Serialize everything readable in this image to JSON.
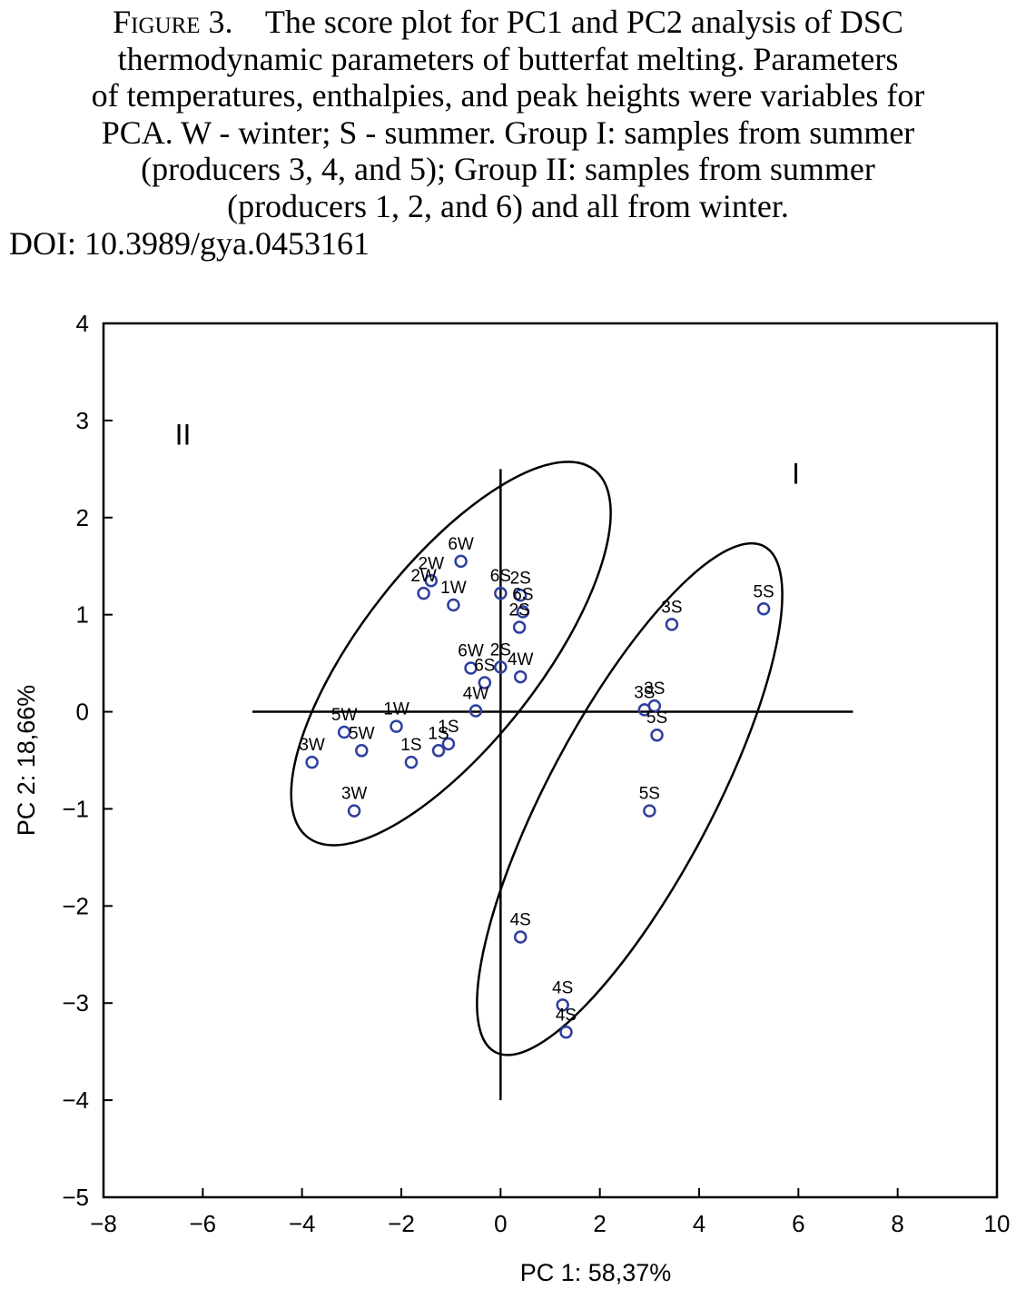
{
  "caption": {
    "label": "Figure 3.",
    "lines": [
      "The score plot for PC1 and PC2 analysis of DSC",
      "thermodynamic parameters of butterfat melting. Parameters",
      "of temperatures, enthalpies, and peak heights were variables for",
      "PCA. W - winter; S - summer. Group I: samples from summer",
      "(producers 3, 4, and 5); Group II: samples from summer",
      "(producers 1, 2, and 6) and all from winter."
    ],
    "doi": "DOI: 10.3989/gya.0453161"
  },
  "chart_data": {
    "type": "scatter",
    "xlabel": "PC 1: 58,37%",
    "ylabel": "PC 2: 18,66%",
    "xlim": [
      -8,
      10
    ],
    "ylim": [
      -5,
      4
    ],
    "xticks": [
      -8,
      -6,
      -4,
      -2,
      0,
      2,
      4,
      6,
      8,
      10
    ],
    "yticks": [
      -5,
      -4,
      -3,
      -2,
      -1,
      0,
      1,
      2,
      3,
      4
    ],
    "xtick_labels": [
      "−8",
      "−6",
      "−4",
      "−2",
      "0",
      "2",
      "4",
      "6",
      "8",
      "10"
    ],
    "ytick_labels": [
      "−5",
      "−4",
      "−3",
      "−2",
      "−1",
      "0",
      "1",
      "2",
      "3",
      "4"
    ],
    "grid": false,
    "marker_color": "#2e3f9e",
    "reference_lines": {
      "horizontal": {
        "y": 0,
        "x_from": -5,
        "x_to": 7.1
      },
      "vertical": {
        "x": 0,
        "y_from": -4,
        "y_to": 2.5
      }
    },
    "group_labels": [
      {
        "text": "II",
        "x": -6.4,
        "y": 2.75
      },
      {
        "text": "I",
        "x": 5.95,
        "y": 2.35
      }
    ],
    "ellipses": [
      {
        "group": "II",
        "cx": -1.0,
        "cy": 0.6,
        "rx": 1.8,
        "ry": 2.4,
        "rotate_deg": 38
      },
      {
        "group": "I",
        "cx": 2.6,
        "cy": -0.9,
        "rx": 1.65,
        "ry": 2.95,
        "rotate_deg": 28
      }
    ],
    "points": [
      {
        "label": "6W",
        "x": -0.8,
        "y": 1.55
      },
      {
        "label": "2W",
        "x": -1.4,
        "y": 1.35
      },
      {
        "label": "2W",
        "x": -1.55,
        "y": 1.22
      },
      {
        "label": "1W",
        "x": -0.95,
        "y": 1.1
      },
      {
        "label": "6S",
        "x": 0.0,
        "y": 1.22
      },
      {
        "label": "2S",
        "x": 0.4,
        "y": 1.2
      },
      {
        "label": "6S",
        "x": 0.45,
        "y": 1.03
      },
      {
        "label": "2S",
        "x": 0.38,
        "y": 0.87
      },
      {
        "label": "6W",
        "x": -0.6,
        "y": 0.45
      },
      {
        "label": "6S",
        "x": -0.32,
        "y": 0.3
      },
      {
        "label": "2S",
        "x": 0.0,
        "y": 0.46
      },
      {
        "label": "4W",
        "x": 0.4,
        "y": 0.36
      },
      {
        "label": "4W",
        "x": -0.5,
        "y": 0.01
      },
      {
        "label": "1W",
        "x": -2.1,
        "y": -0.15
      },
      {
        "label": "5W",
        "x": -3.15,
        "y": -0.21
      },
      {
        "label": "5W",
        "x": -2.8,
        "y": -0.4
      },
      {
        "label": "3W",
        "x": -3.8,
        "y": -0.52
      },
      {
        "label": "1S",
        "x": -1.05,
        "y": -0.33
      },
      {
        "label": "1S",
        "x": -1.25,
        "y": -0.4
      },
      {
        "label": "1S",
        "x": -1.8,
        "y": -0.52
      },
      {
        "label": "3W",
        "x": -2.95,
        "y": -1.02
      },
      {
        "label": "3S",
        "x": 3.45,
        "y": 0.9
      },
      {
        "label": "5S",
        "x": 5.3,
        "y": 1.06
      },
      {
        "label": "3S",
        "x": 3.1,
        "y": 0.06
      },
      {
        "label": "3S",
        "x": 2.9,
        "y": 0.02
      },
      {
        "label": "5S",
        "x": 3.15,
        "y": -0.24
      },
      {
        "label": "5S",
        "x": 3.0,
        "y": -1.02
      },
      {
        "label": "4S",
        "x": 0.4,
        "y": -2.32
      },
      {
        "label": "4S",
        "x": 1.25,
        "y": -3.02
      },
      {
        "label": "4S",
        "x": 1.32,
        "y": -3.3
      }
    ]
  }
}
